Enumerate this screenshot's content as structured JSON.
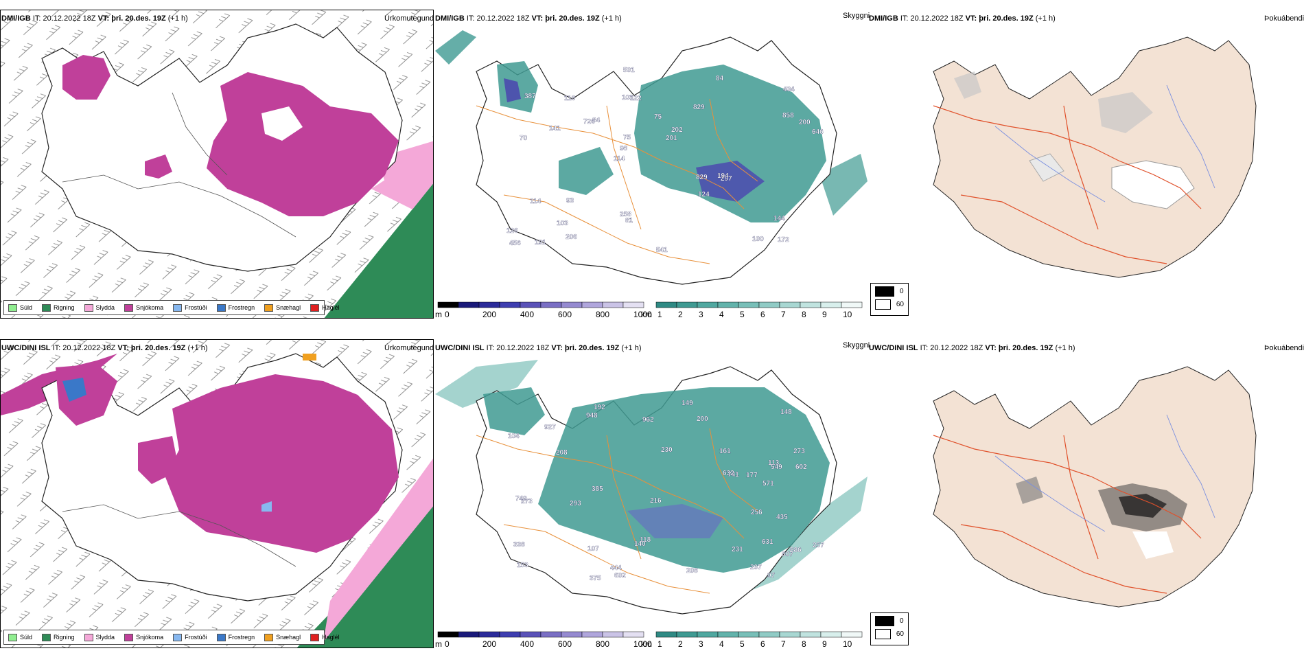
{
  "rows": [
    {
      "model": "DMI/IGB",
      "it": "IT: 20.12.2022 18Z",
      "vt": "VT: þri. 20.des. 19Z",
      "lead": "(+1 h)"
    },
    {
      "model": "UWC/DINI ISL",
      "it": "IT: 20.12.2022 18Z",
      "vt": "VT: þri. 20.des. 19Z",
      "lead": "(+1 h)"
    }
  ],
  "panel_titles": {
    "precip": "Úrkomutegund",
    "visibility": "Skyggni",
    "fog": "Þokuábendi"
  },
  "precip_legend": [
    {
      "label": "Súld",
      "color": "#90ee90"
    },
    {
      "label": "Rigning",
      "color": "#2e8b57"
    },
    {
      "label": "Slydda",
      "color": "#f4a8d8"
    },
    {
      "label": "Snjókoma",
      "color": "#c0409a"
    },
    {
      "label": "Frostúði",
      "color": "#87b8f0"
    },
    {
      "label": "Frostregn",
      "color": "#3a78c8"
    },
    {
      "label": "Snæhagl",
      "color": "#f0a020"
    },
    {
      "label": "Haglél",
      "color": "#e02020"
    }
  ],
  "vis_scale_m": {
    "unit": "m",
    "ticks": [
      "0",
      "200",
      "400",
      "600",
      "800",
      "1000"
    ]
  },
  "vis_scale_km": {
    "unit": "km",
    "ticks": [
      "1",
      "2",
      "3",
      "4",
      "5",
      "6",
      "7",
      "8",
      "9",
      "10"
    ]
  },
  "fog_legend": [
    {
      "label": "0",
      "color": "#000000"
    },
    {
      "label": "60",
      "color": "#ffffff"
    }
  ],
  "vis_labels_top": [
    "172",
    "70",
    "404",
    "114",
    "829",
    "191",
    "103",
    "75",
    "114",
    "84",
    "126",
    "103",
    "122",
    "202",
    "297",
    "387",
    "501",
    "646",
    "829",
    "858",
    "98",
    "258",
    "75",
    "118",
    "84",
    "93",
    "100",
    "144",
    "194",
    "541",
    "726",
    "141",
    "124",
    "206",
    "200",
    "201",
    "456",
    "81"
  ],
  "vis_labels_bottom": [
    "631",
    "273",
    "886",
    "230",
    "153",
    "192",
    "113",
    "107",
    "148",
    "208",
    "602",
    "104",
    "571",
    "602",
    "338",
    "927",
    "607",
    "948",
    "118",
    "549",
    "749",
    "273",
    "208",
    "632",
    "444",
    "140",
    "149",
    "200",
    "161",
    "257",
    "293",
    "231",
    "375",
    "216",
    "435",
    "207",
    "741",
    "962",
    "97",
    "385",
    "256",
    "177"
  ]
}
